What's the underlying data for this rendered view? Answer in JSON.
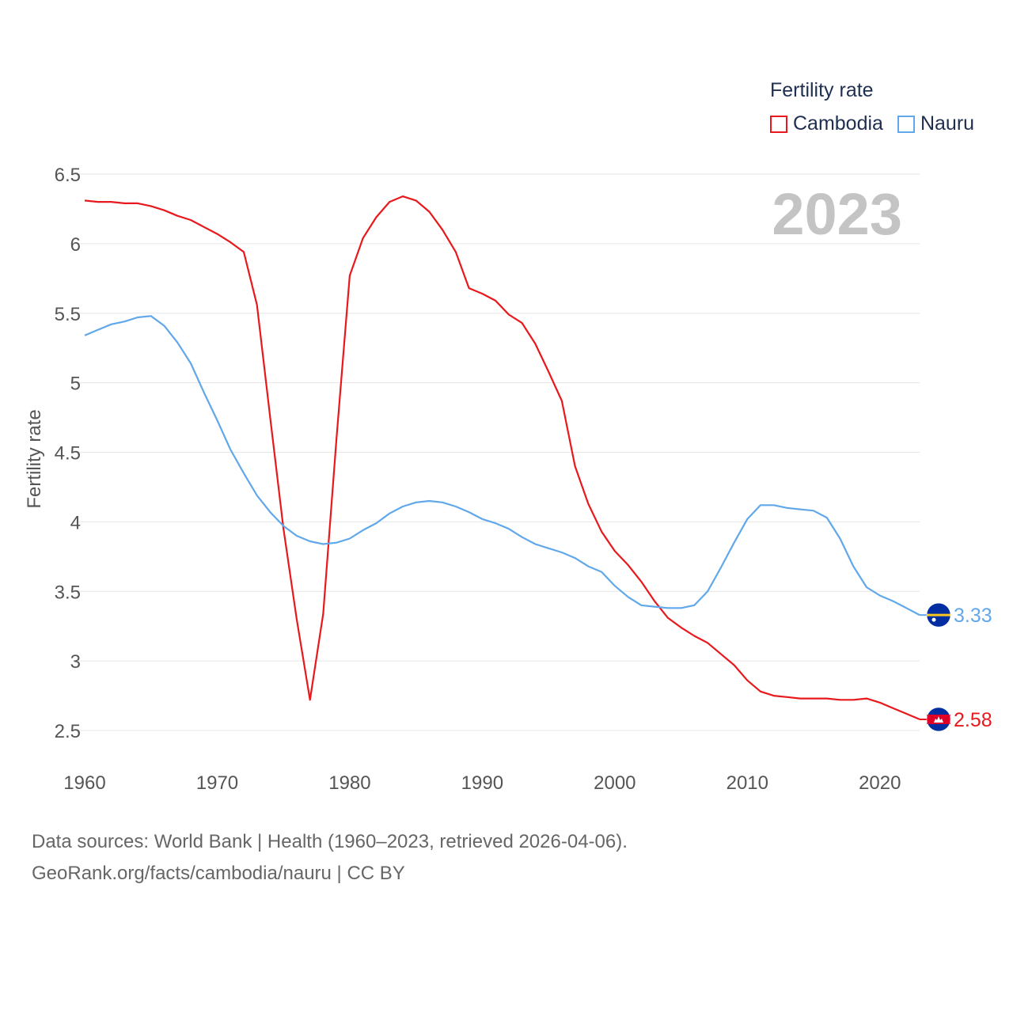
{
  "legend": {
    "title": "Fertility rate",
    "items": [
      {
        "label": "Cambodia",
        "color": "#e8181c"
      },
      {
        "label": "Nauru",
        "color": "#61a8ea"
      }
    ]
  },
  "year_label": "2023",
  "footer": {
    "source_line": "Data sources: World Bank | Health (1960–2023, retrieved 2026-04-06).",
    "url_line": "GeoRank.org/facts/cambodia/nauru | CC BY"
  },
  "chart_data": {
    "type": "line",
    "title": "",
    "xlabel": "",
    "ylabel": "Fertility rate",
    "xlim": [
      1960,
      2023
    ],
    "ylim": [
      2.5,
      6.5
    ],
    "x_ticks": [
      1960,
      1970,
      1980,
      1990,
      2000,
      2010,
      2020
    ],
    "y_ticks": [
      2.5,
      3,
      3.5,
      4,
      4.5,
      5,
      5.5,
      6,
      6.5
    ],
    "y_tick_labels": [
      "2.5",
      "3",
      "3.5",
      "4",
      "4.5",
      "5",
      "5.5",
      "6",
      "6.5"
    ],
    "grid": true,
    "series": [
      {
        "name": "Cambodia",
        "color": "#e8181c",
        "end_label": "2.58",
        "x": [
          1960,
          1961,
          1962,
          1963,
          1964,
          1965,
          1966,
          1967,
          1968,
          1969,
          1970,
          1971,
          1972,
          1973,
          1974,
          1975,
          1976,
          1977,
          1978,
          1979,
          1980,
          1981,
          1982,
          1983,
          1984,
          1985,
          1986,
          1987,
          1988,
          1989,
          1990,
          1991,
          1992,
          1993,
          1994,
          1995,
          1996,
          1997,
          1998,
          1999,
          2000,
          2001,
          2002,
          2003,
          2004,
          2005,
          2006,
          2007,
          2008,
          2009,
          2010,
          2011,
          2012,
          2013,
          2014,
          2015,
          2016,
          2017,
          2018,
          2019,
          2020,
          2021,
          2022,
          2023
        ],
        "values": [
          6.31,
          6.3,
          6.3,
          6.29,
          6.29,
          6.27,
          6.24,
          6.2,
          6.17,
          6.12,
          6.07,
          6.01,
          5.94,
          5.56,
          4.75,
          3.95,
          3.3,
          2.72,
          3.34,
          4.6,
          5.77,
          6.04,
          6.19,
          6.3,
          6.34,
          6.31,
          6.23,
          6.1,
          5.94,
          5.68,
          5.64,
          5.59,
          5.49,
          5.43,
          5.28,
          5.08,
          4.87,
          4.4,
          4.13,
          3.93,
          3.79,
          3.69,
          3.57,
          3.43,
          3.31,
          3.24,
          3.18,
          3.13,
          3.05,
          2.97,
          2.86,
          2.78,
          2.75,
          2.74,
          2.73,
          2.73,
          2.73,
          2.72,
          2.72,
          2.73,
          2.7,
          2.66,
          2.62,
          2.58
        ]
      },
      {
        "name": "Nauru",
        "color": "#61a8ea",
        "end_label": "3.33",
        "x": [
          1960,
          1961,
          1962,
          1963,
          1964,
          1965,
          1966,
          1967,
          1968,
          1969,
          1970,
          1971,
          1972,
          1973,
          1974,
          1975,
          1976,
          1977,
          1978,
          1979,
          1980,
          1981,
          1982,
          1983,
          1984,
          1985,
          1986,
          1987,
          1988,
          1989,
          1990,
          1991,
          1992,
          1993,
          1994,
          1995,
          1996,
          1997,
          1998,
          1999,
          2000,
          2001,
          2002,
          2003,
          2004,
          2005,
          2006,
          2007,
          2008,
          2009,
          2010,
          2011,
          2012,
          2013,
          2014,
          2015,
          2016,
          2017,
          2018,
          2019,
          2020,
          2021,
          2022,
          2023
        ],
        "values": [
          5.34,
          5.38,
          5.42,
          5.44,
          5.47,
          5.48,
          5.41,
          5.29,
          5.14,
          4.93,
          4.73,
          4.52,
          4.35,
          4.19,
          4.07,
          3.97,
          3.9,
          3.86,
          3.84,
          3.85,
          3.88,
          3.94,
          3.99,
          4.06,
          4.11,
          4.14,
          4.15,
          4.14,
          4.11,
          4.07,
          4.02,
          3.99,
          3.95,
          3.89,
          3.84,
          3.81,
          3.78,
          3.74,
          3.68,
          3.64,
          3.54,
          3.46,
          3.4,
          3.39,
          3.38,
          3.38,
          3.4,
          3.5,
          3.67,
          3.85,
          4.02,
          4.12,
          4.12,
          4.1,
          4.09,
          4.08,
          4.03,
          3.88,
          3.68,
          3.53,
          3.47,
          3.43,
          3.38,
          3.33
        ]
      }
    ]
  }
}
